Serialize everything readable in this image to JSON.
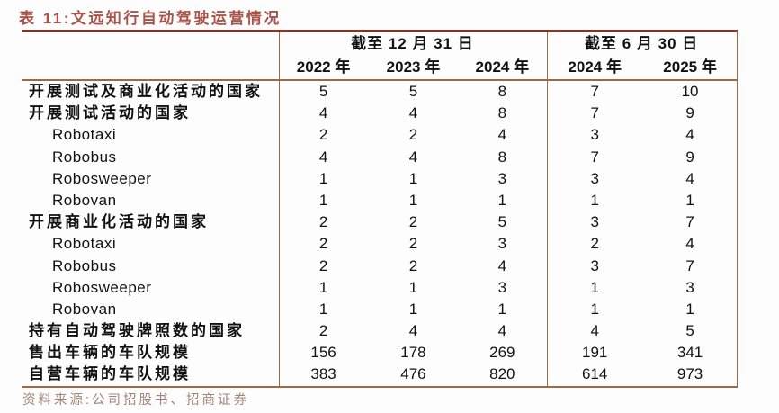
{
  "title": "表 11:文远知行自动驾驶运营情况",
  "table": {
    "col_groups": [
      {
        "label": "截至 12 月 31 日",
        "cols": [
          "2022 年",
          "2023 年",
          "2024 年"
        ]
      },
      {
        "label": "截至 6 月 30 日",
        "cols": [
          "2024 年",
          "2025 年"
        ]
      }
    ],
    "rows": [
      {
        "label": "开展测试及商业化活动的国家",
        "indent": false,
        "values": [
          "5",
          "5",
          "8",
          "7",
          "10"
        ]
      },
      {
        "label": "开展测试活动的国家",
        "indent": false,
        "values": [
          "4",
          "4",
          "8",
          "7",
          "9"
        ]
      },
      {
        "label": "Robotaxi",
        "indent": true,
        "values": [
          "2",
          "2",
          "4",
          "3",
          "4"
        ]
      },
      {
        "label": "Robobus",
        "indent": true,
        "values": [
          "4",
          "4",
          "8",
          "7",
          "9"
        ]
      },
      {
        "label": "Robosweeper",
        "indent": true,
        "values": [
          "1",
          "1",
          "3",
          "3",
          "4"
        ]
      },
      {
        "label": "Robovan",
        "indent": true,
        "values": [
          "1",
          "1",
          "1",
          "1",
          "1"
        ]
      },
      {
        "label": "开展商业化活动的国家",
        "indent": false,
        "values": [
          "2",
          "2",
          "5",
          "3",
          "7"
        ]
      },
      {
        "label": "Robotaxi",
        "indent": true,
        "values": [
          "2",
          "2",
          "3",
          "2",
          "4"
        ]
      },
      {
        "label": "Robobus",
        "indent": true,
        "values": [
          "2",
          "2",
          "4",
          "3",
          "7"
        ]
      },
      {
        "label": "Robosweeper",
        "indent": true,
        "values": [
          "1",
          "1",
          "3",
          "1",
          "3"
        ]
      },
      {
        "label": "Robovan",
        "indent": true,
        "values": [
          "1",
          "1",
          "1",
          "1",
          "1"
        ]
      },
      {
        "label": "持有自动驾驶牌照数的国家",
        "indent": false,
        "values": [
          "2",
          "4",
          "4",
          "4",
          "5"
        ]
      },
      {
        "label": "售出车辆的车队规模",
        "indent": false,
        "values": [
          "156",
          "178",
          "269",
          "191",
          "341"
        ]
      },
      {
        "label": "自营车辆的车队规模",
        "indent": false,
        "values": [
          "383",
          "476",
          "820",
          "614",
          "973"
        ]
      }
    ]
  },
  "footer": {
    "source": "资料来源:公司招股书、招商证券"
  },
  "colors": {
    "title_red": "#a9544a",
    "rule_brown": "#9c6a44",
    "top_rule_red": "#83382a",
    "source_gray": "#a08478",
    "text": "#111111"
  }
}
